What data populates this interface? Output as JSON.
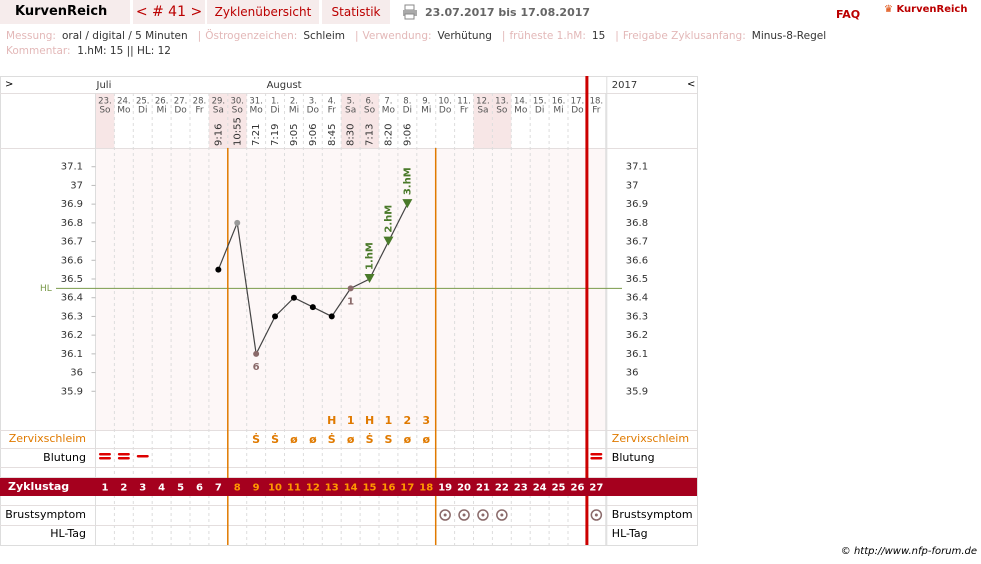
{
  "header": {
    "brand": "KurvenReich",
    "cycle_nav": "< # 41 >",
    "tabs": [
      "Zyklenübersicht",
      "Statistik"
    ],
    "date_range": "23.07.2017 bis 17.08.2017",
    "faq": "FAQ",
    "logo": "KurvenReich"
  },
  "info": {
    "fields": [
      {
        "label": "Messung:",
        "value": "oral / digital / 5 Minuten"
      },
      {
        "label": "Östrogenzeichen:",
        "value": "Schleim"
      },
      {
        "label": "Verwendung:",
        "value": "Verhütung"
      },
      {
        "label": "früheste 1.hM:",
        "value": "15"
      },
      {
        "label": "Freigabe Zyklusanfang:",
        "value": "Minus-8-Regel"
      }
    ],
    "comment_label": "Kommentar:",
    "comment": "1.hM: 15 || HL: 12"
  },
  "chart_data": {
    "type": "line",
    "nav_left": ">",
    "nav_right": "<",
    "year": "2017",
    "months": [
      "Juli",
      null,
      null,
      null,
      null,
      null,
      null,
      null,
      null,
      "August",
      null,
      null,
      null,
      null,
      null,
      null,
      null,
      null,
      null,
      null,
      null,
      null,
      null,
      null,
      null,
      null,
      null
    ],
    "categories": [
      "23.",
      "24.",
      "25.",
      "26.",
      "27.",
      "28.",
      "29.",
      "30.",
      "31.",
      "1.",
      "2.",
      "3.",
      "4.",
      "5.",
      "6.",
      "7.",
      "8.",
      "9.",
      "10.",
      "11.",
      "12.",
      "13.",
      "14.",
      "15.",
      "16.",
      "17.",
      "18."
    ],
    "weekdays": [
      "So",
      "Mo",
      "Di",
      "Mi",
      "Do",
      "Fr",
      "Sa",
      "So",
      "Mo",
      "Di",
      "Mi",
      "Do",
      "Fr",
      "Sa",
      "So",
      "Mo",
      "Di",
      "Mi",
      "Do",
      "Fr",
      "Sa",
      "So",
      "Mo",
      "Di",
      "Mi",
      "Do",
      "Fr"
    ],
    "times": [
      null,
      null,
      null,
      null,
      null,
      null,
      "9:16",
      "10:55",
      "7:21",
      "7:19",
      "9:05",
      "9:06",
      "8:45",
      "8:30",
      "7:13",
      "8:20",
      "9:06",
      null,
      null,
      null,
      null,
      null,
      null,
      null,
      null,
      null,
      null
    ],
    "values": [
      null,
      null,
      null,
      null,
      null,
      null,
      36.55,
      36.8,
      36.1,
      36.3,
      36.4,
      36.35,
      36.3,
      36.45,
      36.5,
      36.7,
      36.9,
      null,
      null,
      null,
      null,
      null,
      null,
      null,
      null,
      null,
      null
    ],
    "point_colors": [
      null,
      null,
      null,
      null,
      null,
      null,
      "#000",
      "#999",
      "#8a6a6a",
      "#000",
      "#000",
      "#000",
      "#000",
      "#8a6a6a",
      "#4a7a2a",
      "#4a7a2a",
      "#4a7a2a",
      null,
      null,
      null,
      null,
      null,
      null,
      null,
      null,
      null,
      null
    ],
    "point_labels": [
      null,
      null,
      null,
      null,
      null,
      null,
      null,
      null,
      "6",
      null,
      null,
      null,
      null,
      "1",
      null,
      null,
      null,
      null,
      null,
      null,
      null,
      null,
      null,
      null,
      null,
      null,
      null
    ],
    "hm_labels": [
      null,
      null,
      null,
      null,
      null,
      null,
      null,
      null,
      null,
      null,
      null,
      null,
      null,
      null,
      "1.hM",
      "2.hM",
      "3.hM",
      null,
      null,
      null,
      null,
      null,
      null,
      null,
      null,
      null,
      null
    ],
    "line_color": "#444",
    "ylim": [
      35.8,
      37.2
    ],
    "yticks": [
      35.9,
      36,
      36.1,
      36.2,
      36.3,
      36.4,
      36.5,
      36.6,
      36.7,
      36.8,
      36.9,
      37,
      37.1
    ],
    "hl": {
      "label": "HL",
      "value": 36.45,
      "color": "#7a9a4a"
    },
    "markers": [
      null,
      null,
      null,
      null,
      null,
      null,
      null,
      null,
      null,
      null,
      null,
      null,
      "H",
      "1",
      "H",
      "1",
      "2",
      "3",
      null,
      null,
      null,
      null,
      null,
      null,
      null,
      null,
      null
    ],
    "row_labels": {
      "zervix": "Zervixschleim",
      "bleeding": "Blutung",
      "cycle_day": "Zyklustag",
      "breast": "Brustsymptom",
      "hl_day": "HL-Tag"
    },
    "zervix": [
      null,
      null,
      null,
      null,
      null,
      null,
      null,
      null,
      "Ṡ",
      "Ṡ",
      "ø",
      "ø",
      "Ṡ",
      "ø",
      "Ṡ",
      "S",
      "ø",
      "ø",
      null,
      null,
      null,
      null,
      null,
      null,
      null,
      null,
      null
    ],
    "bleeding": [
      2,
      2,
      1,
      null,
      null,
      null,
      null,
      null,
      null,
      null,
      null,
      null,
      null,
      null,
      null,
      null,
      null,
      null,
      null,
      null,
      null,
      null,
      null,
      null,
      null,
      null,
      2
    ],
    "breast": [
      null,
      null,
      null,
      null,
      null,
      null,
      null,
      null,
      null,
      null,
      null,
      null,
      null,
      null,
      null,
      null,
      null,
      null,
      true,
      true,
      true,
      true,
      null,
      null,
      null,
      null,
      true
    ],
    "cycle_days": [
      1,
      2,
      3,
      4,
      5,
      6,
      7,
      8,
      9,
      10,
      11,
      12,
      13,
      14,
      15,
      16,
      17,
      18,
      19,
      20,
      21,
      22,
      23,
      24,
      25,
      26,
      27
    ],
    "cycle_day_colors": [
      "#fff",
      "#fff",
      "#fff",
      "#fff",
      "#fff",
      "#fff",
      "#fff",
      "#f90",
      "#f90",
      "#f90",
      "#f90",
      "#f90",
      "#f90",
      "#f90",
      "#f90",
      "#f90",
      "#f90",
      "#f90",
      "#fff",
      "#fff",
      "#fff",
      "#fff",
      "#fff",
      "#fff",
      "#fff",
      "#fff",
      "#fff"
    ],
    "accent_color": "#e07a00",
    "band_color": "#a5001e"
  },
  "footer": "© http://www.nfp-forum.de"
}
